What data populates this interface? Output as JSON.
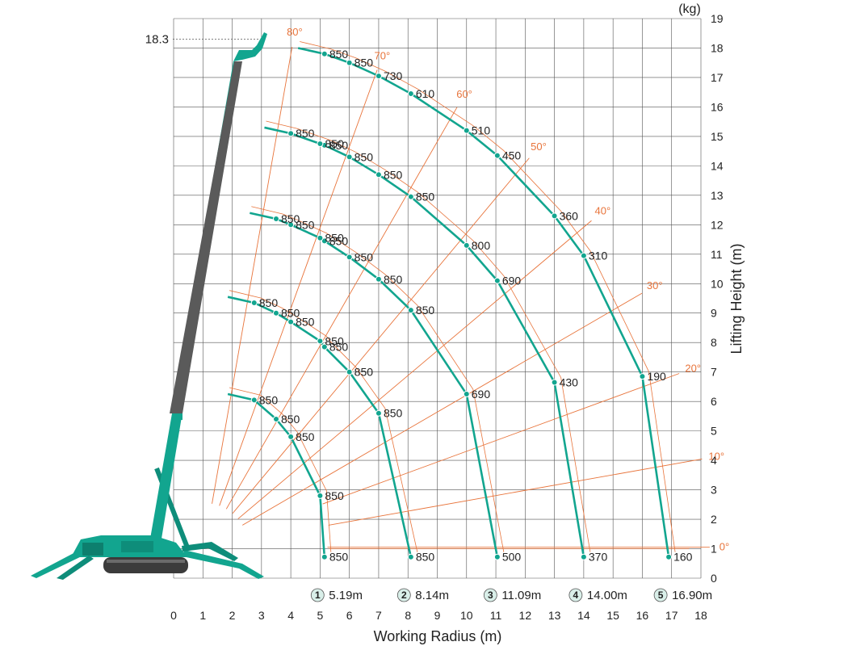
{
  "chart_data": {
    "type": "load-chart",
    "xlabel": "Working Radius (m)",
    "ylabel": "Lifting Height (m)",
    "unit_label": "(kg)",
    "xlim": [
      0,
      18
    ],
    "ylim": [
      0,
      19
    ],
    "x_ticks": [
      0,
      1,
      2,
      3,
      4,
      5,
      6,
      7,
      8,
      9,
      10,
      11,
      12,
      13,
      14,
      15,
      16,
      17,
      18
    ],
    "y_ticks": [
      0,
      1,
      2,
      3,
      4,
      5,
      6,
      7,
      8,
      9,
      10,
      11,
      12,
      13,
      14,
      15,
      16,
      17,
      18,
      19
    ],
    "max_height_label": "18.3",
    "max_height_value": 18.3,
    "accent_color": "#12a58f",
    "angle_color": "#e8743b",
    "boom_angles": [
      {
        "label": "0°",
        "deg": 0
      },
      {
        "label": "10°",
        "deg": 10
      },
      {
        "label": "20°",
        "deg": 20
      },
      {
        "label": "30°",
        "deg": 30
      },
      {
        "label": "40°",
        "deg": 40
      },
      {
        "label": "50°",
        "deg": 50
      },
      {
        "label": "60°",
        "deg": 60
      },
      {
        "label": "70°",
        "deg": 70
      },
      {
        "label": "80°",
        "deg": 80
      }
    ],
    "booms": [
      {
        "number": "1",
        "label": "5.19m",
        "radius": 5.19,
        "points": [
          {
            "x": 5.15,
            "y": 0.72,
            "cap": "850"
          },
          {
            "x": 5.0,
            "y": 2.8,
            "cap": "850"
          },
          {
            "x": 4.0,
            "y": 4.8,
            "cap": "850"
          },
          {
            "x": 3.5,
            "y": 5.4,
            "cap": "850"
          },
          {
            "x": 2.75,
            "y": 6.05,
            "cap": "850"
          }
        ]
      },
      {
        "number": "2",
        "label": "8.14m",
        "radius": 8.14,
        "points": [
          {
            "x": 8.1,
            "y": 0.72,
            "cap": "850"
          },
          {
            "x": 7.0,
            "y": 5.6,
            "cap": "850"
          },
          {
            "x": 6.0,
            "y": 7.0,
            "cap": "850"
          },
          {
            "x": 5.15,
            "y": 7.85,
            "cap": "850"
          },
          {
            "x": 5.0,
            "y": 8.05,
            "cap": "850"
          },
          {
            "x": 4.0,
            "y": 8.7,
            "cap": "850"
          },
          {
            "x": 3.5,
            "y": 9.0,
            "cap": "850"
          },
          {
            "x": 2.75,
            "y": 9.35,
            "cap": "850"
          }
        ]
      },
      {
        "number": "3",
        "label": "11.09m",
        "radius": 11.09,
        "points": [
          {
            "x": 11.05,
            "y": 0.72,
            "cap": "500"
          },
          {
            "x": 10.0,
            "y": 6.25,
            "cap": "690"
          },
          {
            "x": 8.1,
            "y": 9.1,
            "cap": "850"
          },
          {
            "x": 7.0,
            "y": 10.15,
            "cap": "850"
          },
          {
            "x": 6.0,
            "y": 10.9,
            "cap": "850"
          },
          {
            "x": 5.15,
            "y": 11.45,
            "cap": "850"
          },
          {
            "x": 5.0,
            "y": 11.55,
            "cap": "850"
          },
          {
            "x": 4.0,
            "y": 12.0,
            "cap": "850"
          },
          {
            "x": 3.5,
            "y": 12.2,
            "cap": "850"
          }
        ]
      },
      {
        "number": "4",
        "label": "14.00m",
        "radius": 14.0,
        "points": [
          {
            "x": 14.0,
            "y": 0.72,
            "cap": "370"
          },
          {
            "x": 13.0,
            "y": 6.65,
            "cap": "430"
          },
          {
            "x": 11.05,
            "y": 10.1,
            "cap": "690"
          },
          {
            "x": 10.0,
            "y": 11.3,
            "cap": "800"
          },
          {
            "x": 8.1,
            "y": 12.95,
            "cap": "850"
          },
          {
            "x": 7.0,
            "y": 13.7,
            "cap": "850"
          },
          {
            "x": 6.0,
            "y": 14.3,
            "cap": "850"
          },
          {
            "x": 5.15,
            "y": 14.7,
            "cap": "850"
          },
          {
            "x": 5.0,
            "y": 14.75,
            "cap": "850"
          },
          {
            "x": 4.0,
            "y": 15.1,
            "cap": "850"
          }
        ]
      },
      {
        "number": "5",
        "label": "16.90m",
        "radius": 16.9,
        "points": [
          {
            "x": 16.9,
            "y": 0.72,
            "cap": "160"
          },
          {
            "x": 16.0,
            "y": 6.85,
            "cap": "190"
          },
          {
            "x": 14.0,
            "y": 10.95,
            "cap": "310"
          },
          {
            "x": 13.0,
            "y": 12.3,
            "cap": "360"
          },
          {
            "x": 11.05,
            "y": 14.35,
            "cap": "450"
          },
          {
            "x": 10.0,
            "y": 15.2,
            "cap": "510"
          },
          {
            "x": 8.1,
            "y": 16.45,
            "cap": "610"
          },
          {
            "x": 7.0,
            "y": 17.05,
            "cap": "730"
          },
          {
            "x": 6.0,
            "y": 17.5,
            "cap": "850"
          },
          {
            "x": 5.15,
            "y": 17.8,
            "cap": "850"
          }
        ]
      }
    ]
  }
}
